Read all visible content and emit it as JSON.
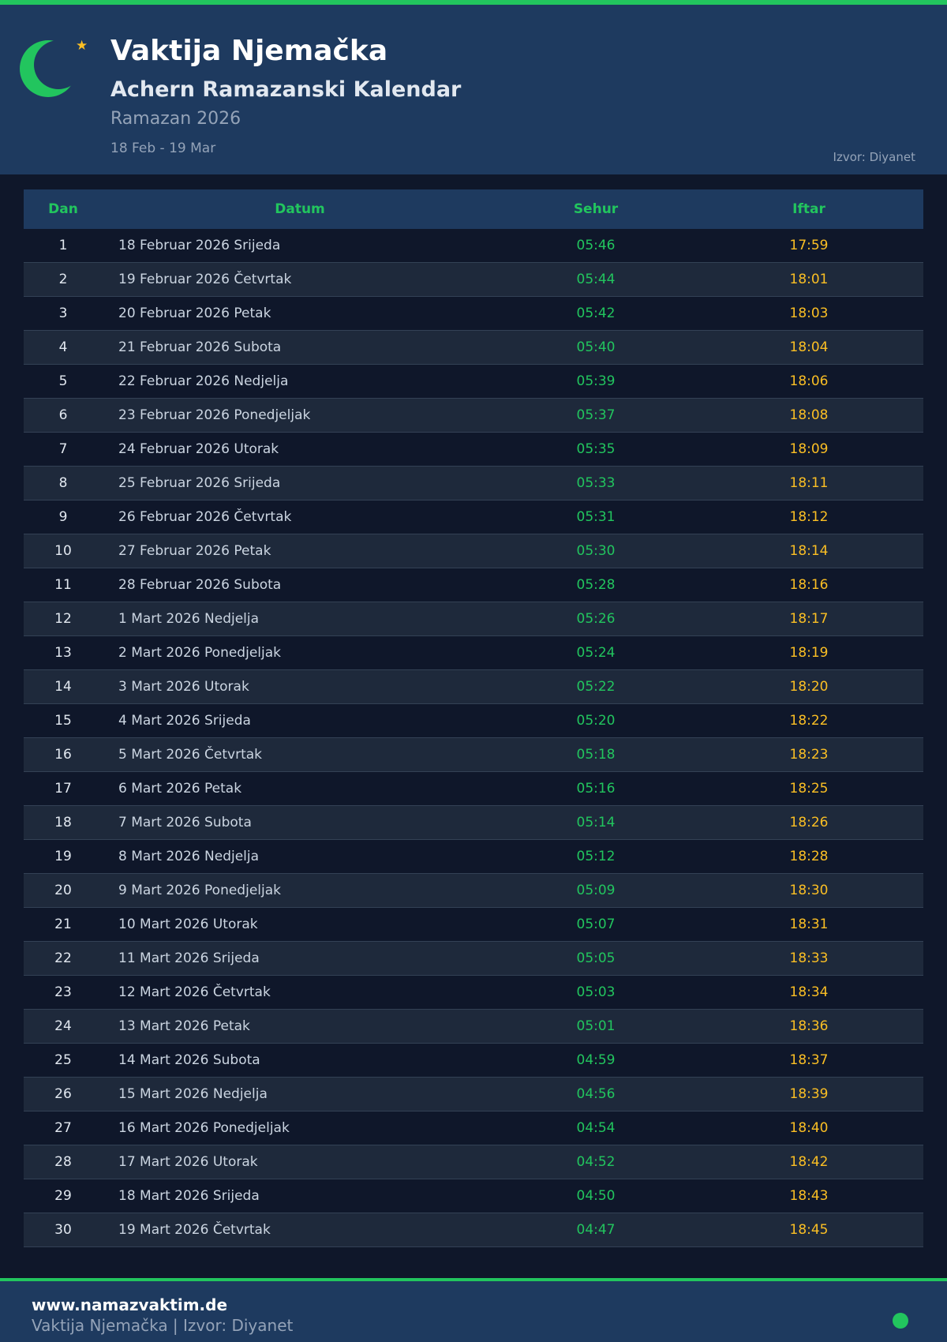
{
  "header": {
    "title": "Vaktija Njemačka",
    "subtitle": "Achern Ramazanski Kalendar",
    "period": "Ramazan 2026",
    "range": "18 Feb - 19 Mar",
    "source": "Izvor: Diyanet"
  },
  "colors": {
    "accent": "#22c55e",
    "iftar": "#fbbf24",
    "header_bg": "#1e3a5f",
    "page_bg": "#0f172a"
  },
  "table": {
    "columns": [
      "Dan",
      "Datum",
      "Sehur",
      "Iftar"
    ],
    "rows": [
      [
        "1",
        "18 Februar 2026 Srijeda",
        "05:46",
        "17:59"
      ],
      [
        "2",
        "19 Februar 2026 Četvrtak",
        "05:44",
        "18:01"
      ],
      [
        "3",
        "20 Februar 2026 Petak",
        "05:42",
        "18:03"
      ],
      [
        "4",
        "21 Februar 2026 Subota",
        "05:40",
        "18:04"
      ],
      [
        "5",
        "22 Februar 2026 Nedjelja",
        "05:39",
        "18:06"
      ],
      [
        "6",
        "23 Februar 2026 Ponedjeljak",
        "05:37",
        "18:08"
      ],
      [
        "7",
        "24 Februar 2026 Utorak",
        "05:35",
        "18:09"
      ],
      [
        "8",
        "25 Februar 2026 Srijeda",
        "05:33",
        "18:11"
      ],
      [
        "9",
        "26 Februar 2026 Četvrtak",
        "05:31",
        "18:12"
      ],
      [
        "10",
        "27 Februar 2026 Petak",
        "05:30",
        "18:14"
      ],
      [
        "11",
        "28 Februar 2026 Subota",
        "05:28",
        "18:16"
      ],
      [
        "12",
        "1 Mart 2026 Nedjelja",
        "05:26",
        "18:17"
      ],
      [
        "13",
        "2 Mart 2026 Ponedjeljak",
        "05:24",
        "18:19"
      ],
      [
        "14",
        "3 Mart 2026 Utorak",
        "05:22",
        "18:20"
      ],
      [
        "15",
        "4 Mart 2026 Srijeda",
        "05:20",
        "18:22"
      ],
      [
        "16",
        "5 Mart 2026 Četvrtak",
        "05:18",
        "18:23"
      ],
      [
        "17",
        "6 Mart 2026 Petak",
        "05:16",
        "18:25"
      ],
      [
        "18",
        "7 Mart 2026 Subota",
        "05:14",
        "18:26"
      ],
      [
        "19",
        "8 Mart 2026 Nedjelja",
        "05:12",
        "18:28"
      ],
      [
        "20",
        "9 Mart 2026 Ponedjeljak",
        "05:09",
        "18:30"
      ],
      [
        "21",
        "10 Mart 2026 Utorak",
        "05:07",
        "18:31"
      ],
      [
        "22",
        "11 Mart 2026 Srijeda",
        "05:05",
        "18:33"
      ],
      [
        "23",
        "12 Mart 2026 Četvrtak",
        "05:03",
        "18:34"
      ],
      [
        "24",
        "13 Mart 2026 Petak",
        "05:01",
        "18:36"
      ],
      [
        "25",
        "14 Mart 2026 Subota",
        "04:59",
        "18:37"
      ],
      [
        "26",
        "15 Mart 2026 Nedjelja",
        "04:56",
        "18:39"
      ],
      [
        "27",
        "16 Mart 2026 Ponedjeljak",
        "04:54",
        "18:40"
      ],
      [
        "28",
        "17 Mart 2026 Utorak",
        "04:52",
        "18:42"
      ],
      [
        "29",
        "18 Mart 2026 Srijeda",
        "04:50",
        "18:43"
      ],
      [
        "30",
        "19 Mart 2026 Četvrtak",
        "04:47",
        "18:45"
      ]
    ]
  },
  "footer": {
    "site": "www.namazvaktim.de",
    "info": "Vaktija Njemačka | Izvor: Diyanet"
  }
}
